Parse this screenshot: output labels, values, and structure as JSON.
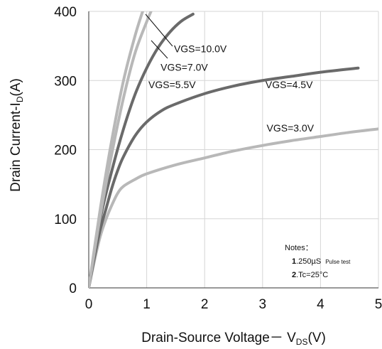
{
  "chart_data": {
    "type": "line",
    "xlabel_main": "Drain-Source Voltage－ V",
    "xlabel_sub": "DS",
    "xlabel_unit": "(V)",
    "ylabel_main": "Drain Current-I",
    "ylabel_sub": "D",
    "ylabel_unit": "(A)",
    "xlim": [
      0,
      5
    ],
    "ylim": [
      0,
      400
    ],
    "x_ticks": [
      "0",
      "1",
      "2",
      "3",
      "4",
      "5"
    ],
    "y_ticks": [
      "0",
      "100",
      "200",
      "300",
      "400"
    ],
    "grid": true,
    "series": [
      {
        "name": "VGS=3.0V",
        "color": "#b8b8b8",
        "points": [
          [
            0,
            0
          ],
          [
            0.1,
            40
          ],
          [
            0.2,
            75
          ],
          [
            0.3,
            100
          ],
          [
            0.4,
            120
          ],
          [
            0.5,
            137
          ],
          [
            0.6,
            147
          ],
          [
            0.8,
            157
          ],
          [
            1.0,
            165
          ],
          [
            1.5,
            178
          ],
          [
            2.0,
            188
          ],
          [
            2.5,
            198
          ],
          [
            3.0,
            206
          ],
          [
            3.5,
            213
          ],
          [
            4.0,
            219
          ],
          [
            4.5,
            225
          ],
          [
            5.0,
            230
          ]
        ]
      },
      {
        "name": "VGS=4.5V",
        "color": "#6a6a6a",
        "points": [
          [
            0,
            0
          ],
          [
            0.1,
            45
          ],
          [
            0.2,
            85
          ],
          [
            0.3,
            115
          ],
          [
            0.4,
            145
          ],
          [
            0.5,
            170
          ],
          [
            0.6,
            190
          ],
          [
            0.8,
            220
          ],
          [
            1.0,
            240
          ],
          [
            1.25,
            256
          ],
          [
            1.5,
            266
          ],
          [
            2.0,
            281
          ],
          [
            2.5,
            292
          ],
          [
            3.0,
            300
          ],
          [
            3.5,
            306
          ],
          [
            4.0,
            312
          ],
          [
            4.65,
            318
          ]
        ]
      },
      {
        "name": "VGS=5.5V",
        "color": "#6a6a6a",
        "points": [
          [
            0,
            0
          ],
          [
            0.2,
            100
          ],
          [
            0.4,
            170
          ],
          [
            0.6,
            230
          ],
          [
            0.8,
            280
          ],
          [
            1.0,
            318
          ],
          [
            1.2,
            348
          ],
          [
            1.4,
            370
          ],
          [
            1.6,
            386
          ],
          [
            1.8,
            396
          ]
        ]
      },
      {
        "name": "VGS=7.0V",
        "color": "#b8b8b8",
        "points": [
          [
            0,
            0
          ],
          [
            0.2,
            105
          ],
          [
            0.4,
            195
          ],
          [
            0.6,
            275
          ],
          [
            0.8,
            340
          ],
          [
            1.0,
            385
          ],
          [
            1.1,
            405
          ]
        ]
      },
      {
        "name": "VGS=10.0V",
        "color": "#b8b8b8",
        "points": [
          [
            0,
            0
          ],
          [
            0.2,
            115
          ],
          [
            0.4,
            215
          ],
          [
            0.6,
            300
          ],
          [
            0.8,
            365
          ],
          [
            0.95,
            405
          ]
        ]
      }
    ],
    "annotations": [
      {
        "text": "VGS=10.0V",
        "x": 1.47,
        "y": 341
      },
      {
        "text": "VGS=7.0V",
        "x": 1.24,
        "y": 314
      },
      {
        "text": "VGS=5.5V",
        "x": 1.03,
        "y": 289
      },
      {
        "text": "VGS=4.5V",
        "x": 3.05,
        "y": 289
      },
      {
        "text": "VGS=3.0V",
        "x": 3.07,
        "y": 226
      }
    ],
    "notes": {
      "title": "Notes：",
      "line1_prefix": "1",
      "line1_value": ".250µS",
      "line1_small": "Pulse test",
      "line2_prefix": "2",
      "line2_value": ".Tc=25°C"
    }
  }
}
